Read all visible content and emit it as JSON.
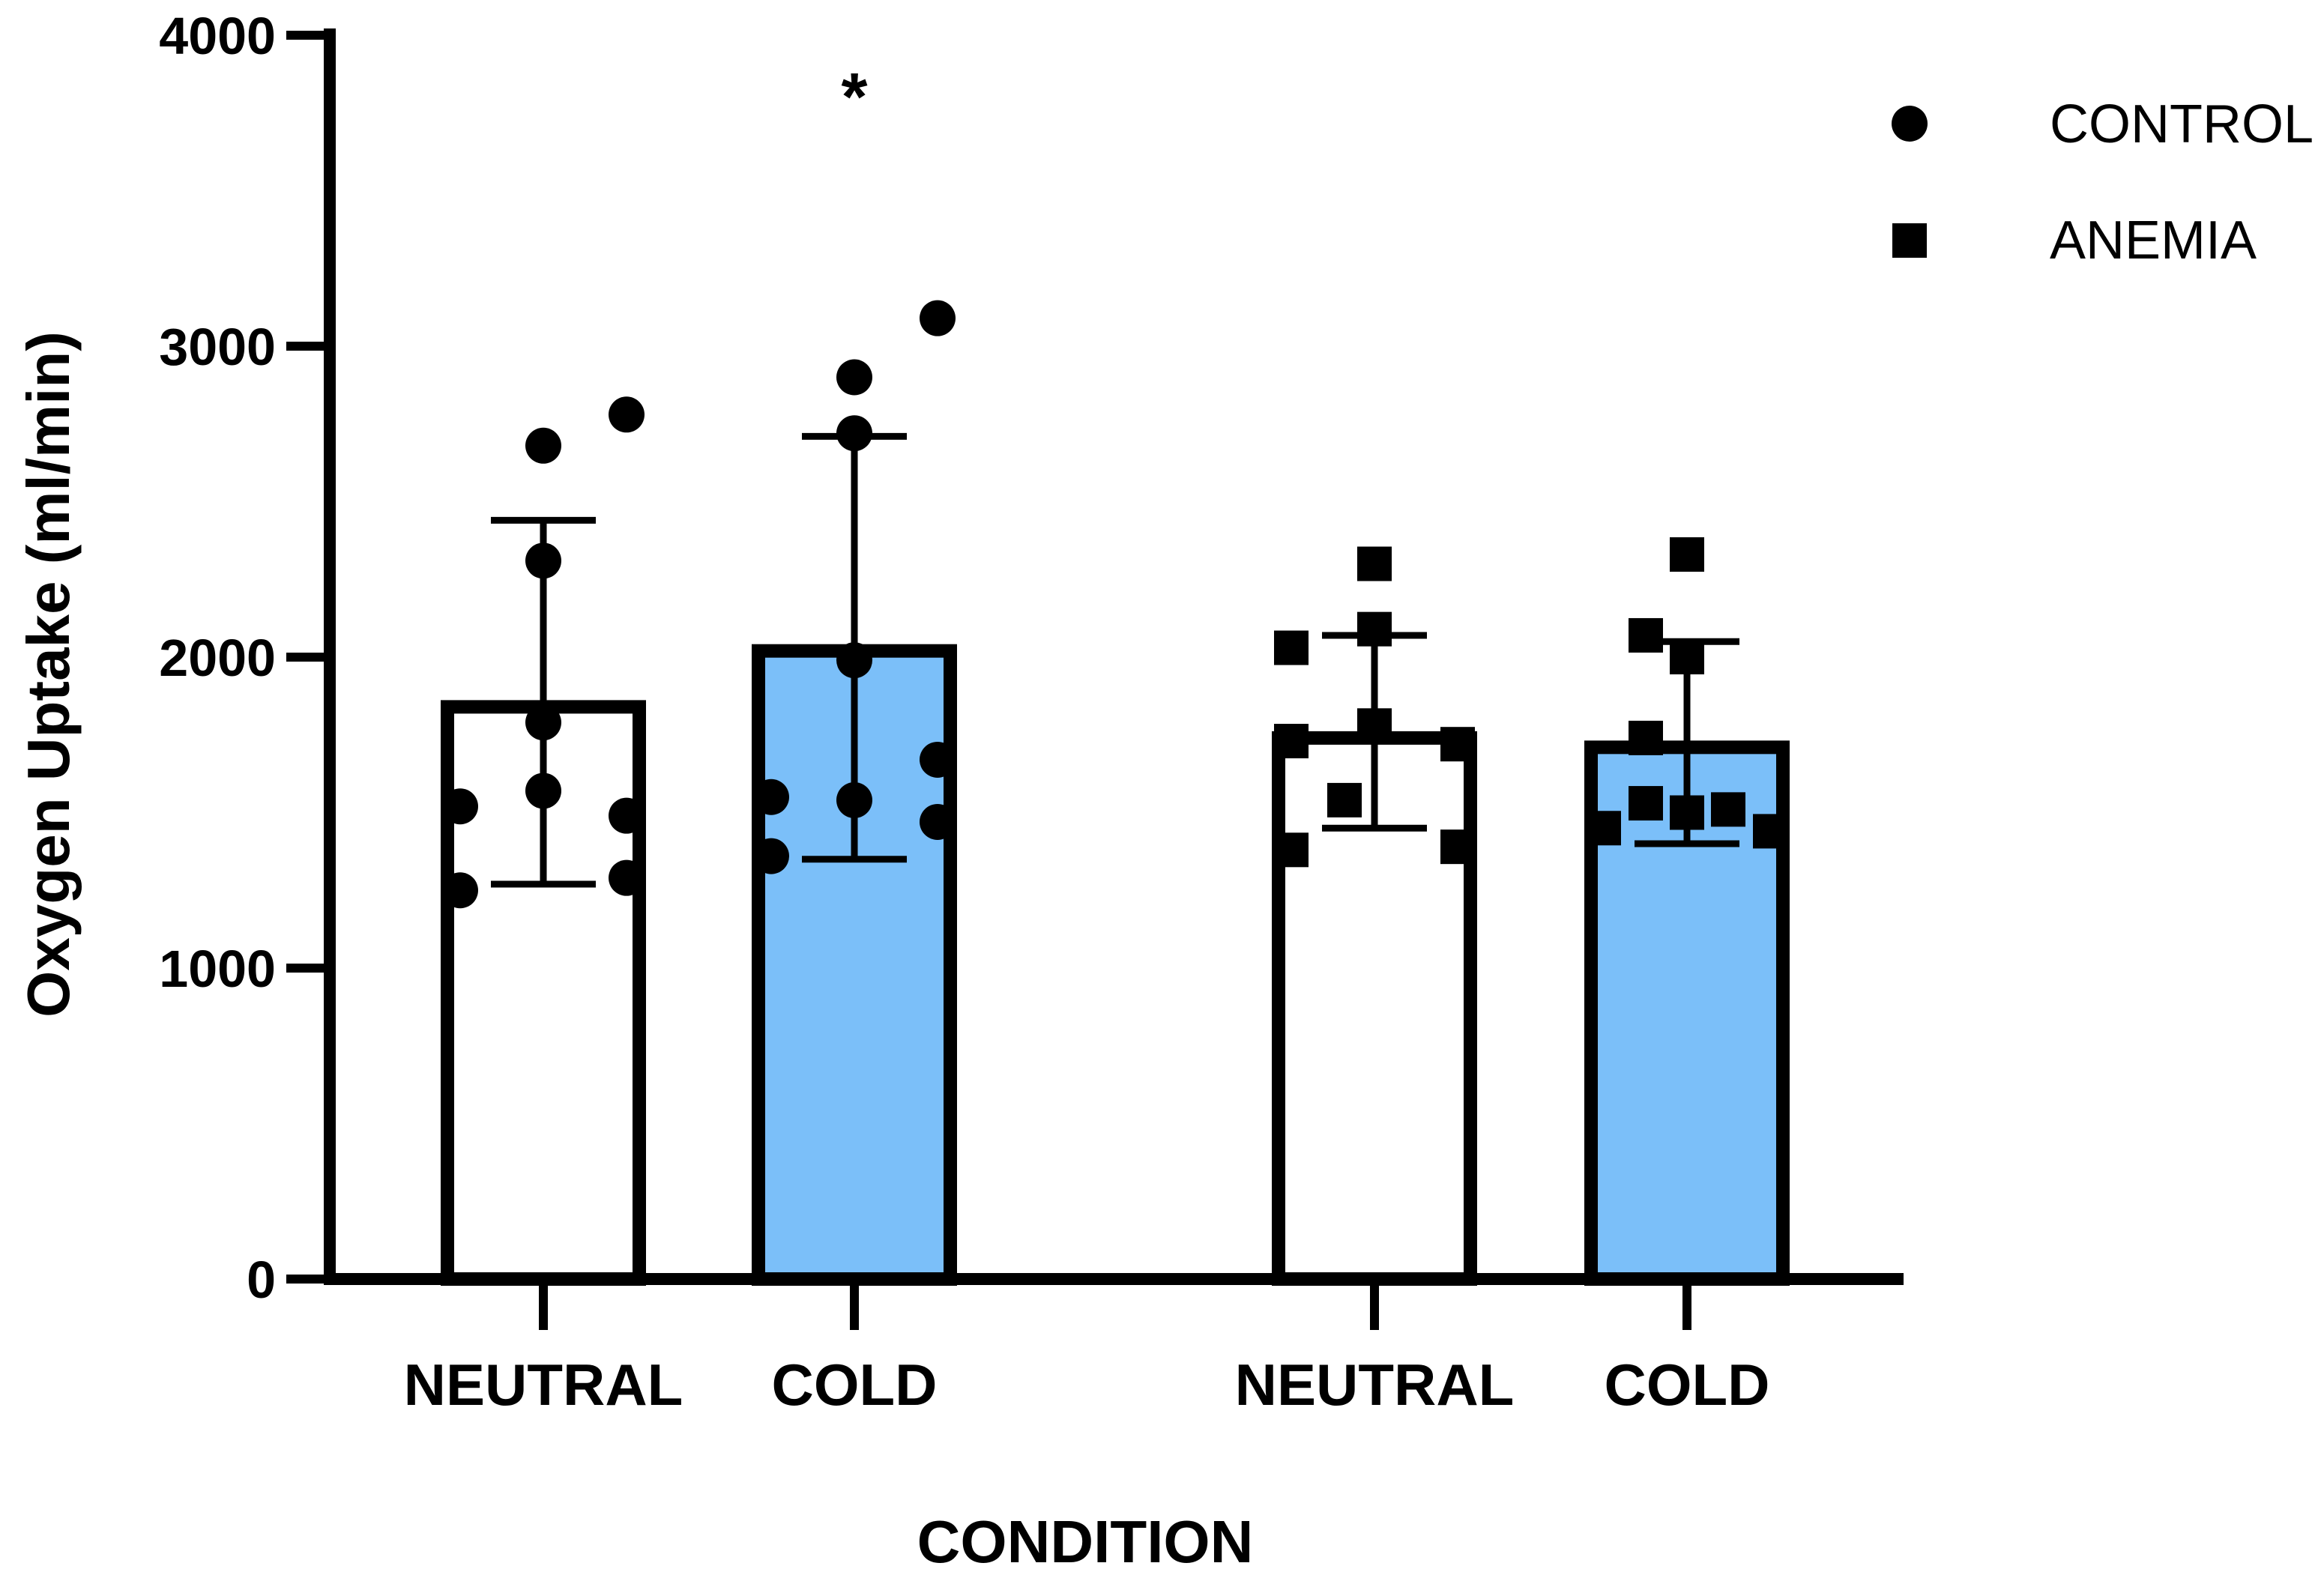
{
  "chart_data": {
    "type": "bar",
    "title": "",
    "xlabel": "CONDITION",
    "ylabel": "Oxygen Uptake (ml/min)",
    "ylim": [
      0,
      4000
    ],
    "yticks": [
      "0",
      "1000",
      "2000",
      "3000",
      "4000"
    ],
    "categories": [
      "NEUTRAL",
      "COLD",
      "NEUTRAL",
      "COLD"
    ],
    "legend": [
      {
        "label": "CONTROL",
        "marker": "circle"
      },
      {
        "label": "ANEMIA",
        "marker": "square"
      }
    ],
    "colors": {
      "neutral_fill": "#ffffff",
      "cold_fill": "#7bbff9",
      "stroke": "#000000"
    },
    "bars": [
      {
        "group": "CONTROL",
        "category": "NEUTRAL",
        "value": 1840,
        "err_low": 1270,
        "err_high": 2440,
        "marker": "circle",
        "points": [
          1250,
          1520,
          1790,
          1570,
          2310,
          2680,
          1490,
          1290,
          2780
        ]
      },
      {
        "group": "CONTROL",
        "category": "COLD",
        "value": 2020,
        "err_low": 1350,
        "err_high": 2710,
        "marker": "circle",
        "annotation": "*",
        "points": [
          1360,
          1550,
          1540,
          1990,
          2720,
          2900,
          3090,
          1470,
          1670
        ]
      },
      {
        "group": "ANEMIA",
        "category": "NEUTRAL",
        "value": 1740,
        "err_low": 1450,
        "err_high": 2070,
        "marker": "square",
        "points": [
          1380,
          1730,
          2030,
          1540,
          1780,
          2090,
          2300,
          1720,
          1390
        ]
      },
      {
        "group": "ANEMIA",
        "category": "COLD",
        "value": 1710,
        "err_low": 1400,
        "err_high": 2050,
        "marker": "square",
        "points": [
          1450,
          1530,
          1740,
          2070,
          1500,
          2000,
          2330,
          1510,
          1440
        ]
      }
    ]
  }
}
